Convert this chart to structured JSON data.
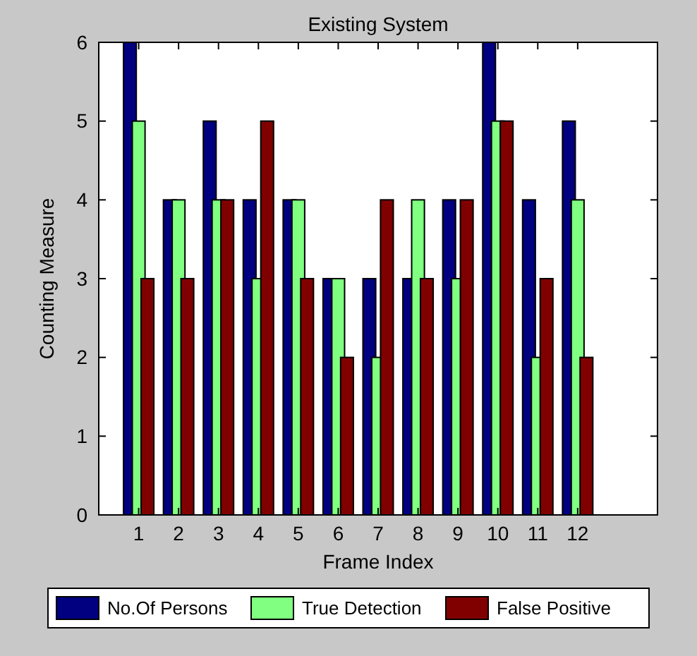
{
  "chart_data": {
    "type": "bar",
    "title": "Existing System",
    "xlabel": "Frame Index",
    "ylabel": "Counting Measure",
    "x": [
      1,
      2,
      3,
      4,
      5,
      6,
      7,
      8,
      9,
      10,
      11,
      12
    ],
    "xlim": [
      0,
      14
    ],
    "xticks": [
      1,
      2,
      3,
      4,
      5,
      6,
      7,
      8,
      9,
      10,
      11,
      12
    ],
    "ylim": [
      0,
      6
    ],
    "yticks": [
      0,
      1,
      2,
      3,
      4,
      5,
      6
    ],
    "legend": "bottom",
    "series": [
      {
        "name": "No.Of Persons",
        "color": "#000080",
        "values": [
          6,
          4,
          5,
          4,
          4,
          3,
          3,
          3,
          4,
          6,
          4,
          5
        ]
      },
      {
        "name": "True Detection",
        "color": "#80ff80",
        "values": [
          5,
          4,
          4,
          3,
          4,
          3,
          2,
          4,
          3,
          5,
          2,
          4
        ]
      },
      {
        "name": "False Positive",
        "color": "#800000",
        "values": [
          3,
          3,
          4,
          5,
          3,
          2,
          4,
          3,
          4,
          5,
          3,
          2
        ]
      }
    ]
  }
}
